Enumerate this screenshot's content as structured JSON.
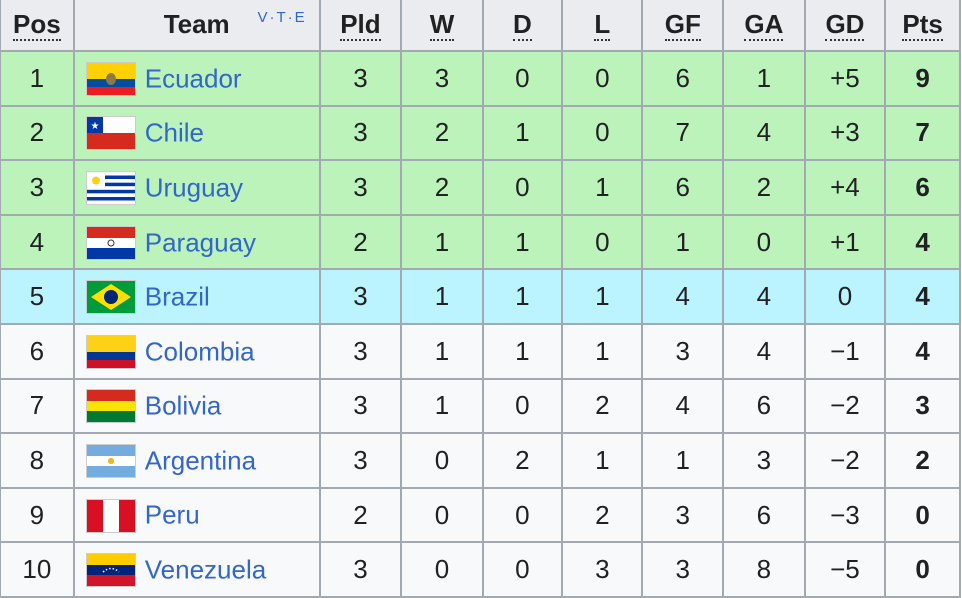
{
  "headers": {
    "pos": "Pos",
    "team": "Team",
    "pld": "Pld",
    "w": "W",
    "d": "D",
    "l": "L",
    "gf": "GF",
    "ga": "GA",
    "gd": "GD",
    "pts": "Pts"
  },
  "vte": "V·T·E",
  "colors": {
    "qualified": "#bbf3bb",
    "playoff": "#bbf3ff",
    "other": "#f8f9fa",
    "link": "#3366cc"
  },
  "rows": [
    {
      "pos": "1",
      "team": "Ecuador",
      "flag": "ecuador",
      "pld": "3",
      "w": "3",
      "d": "0",
      "l": "0",
      "gf": "6",
      "ga": "1",
      "gd": "+5",
      "pts": "9",
      "zone": "g"
    },
    {
      "pos": "2",
      "team": "Chile",
      "flag": "chile",
      "pld": "3",
      "w": "2",
      "d": "1",
      "l": "0",
      "gf": "7",
      "ga": "4",
      "gd": "+3",
      "pts": "7",
      "zone": "g"
    },
    {
      "pos": "3",
      "team": "Uruguay",
      "flag": "uruguay",
      "pld": "3",
      "w": "2",
      "d": "0",
      "l": "1",
      "gf": "6",
      "ga": "2",
      "gd": "+4",
      "pts": "6",
      "zone": "g"
    },
    {
      "pos": "4",
      "team": "Paraguay",
      "flag": "paraguay",
      "pld": "2",
      "w": "1",
      "d": "1",
      "l": "0",
      "gf": "1",
      "ga": "0",
      "gd": "+1",
      "pts": "4",
      "zone": "g"
    },
    {
      "pos": "5",
      "team": "Brazil",
      "flag": "brazil",
      "pld": "3",
      "w": "1",
      "d": "1",
      "l": "1",
      "gf": "4",
      "ga": "4",
      "gd": "0",
      "pts": "4",
      "zone": "b"
    },
    {
      "pos": "6",
      "team": "Colombia",
      "flag": "colombia",
      "pld": "3",
      "w": "1",
      "d": "1",
      "l": "1",
      "gf": "3",
      "ga": "4",
      "gd": "−1",
      "pts": "4",
      "zone": "w"
    },
    {
      "pos": "7",
      "team": "Bolivia",
      "flag": "bolivia",
      "pld": "3",
      "w": "1",
      "d": "0",
      "l": "2",
      "gf": "4",
      "ga": "6",
      "gd": "−2",
      "pts": "3",
      "zone": "w"
    },
    {
      "pos": "8",
      "team": "Argentina",
      "flag": "argentina",
      "pld": "3",
      "w": "0",
      "d": "2",
      "l": "1",
      "gf": "1",
      "ga": "3",
      "gd": "−2",
      "pts": "2",
      "zone": "w"
    },
    {
      "pos": "9",
      "team": "Peru",
      "flag": "peru",
      "pld": "2",
      "w": "0",
      "d": "0",
      "l": "2",
      "gf": "3",
      "ga": "6",
      "gd": "−3",
      "pts": "0",
      "zone": "w"
    },
    {
      "pos": "10",
      "team": "Venezuela",
      "flag": "venezuela",
      "pld": "3",
      "w": "0",
      "d": "0",
      "l": "3",
      "gf": "3",
      "ga": "8",
      "gd": "−5",
      "pts": "0",
      "zone": "w"
    }
  ]
}
